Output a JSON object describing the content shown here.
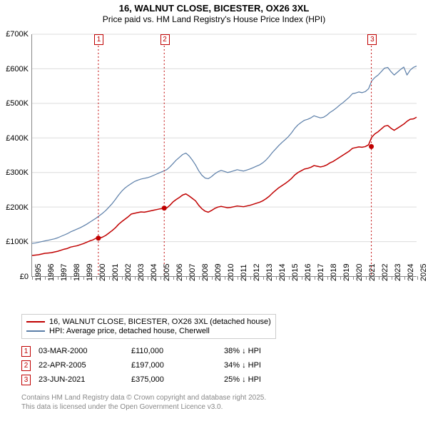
{
  "title_line1": "16, WALNUT CLOSE, BICESTER, OX26 3XL",
  "title_line2": "Price paid vs. HM Land Registry's House Price Index (HPI)",
  "chart": {
    "type": "line",
    "background_color": "#ffffff",
    "grid_color": "#dcdcdc",
    "axis_color": "#888888",
    "x": {
      "min": 1995,
      "max": 2025,
      "tick_step": 1,
      "labels": [
        "1995",
        "1996",
        "1997",
        "1998",
        "1999",
        "2000",
        "2001",
        "2002",
        "2003",
        "2004",
        "2005",
        "2006",
        "2007",
        "2008",
        "2009",
        "2010",
        "2011",
        "2012",
        "2013",
        "2014",
        "2015",
        "2016",
        "2017",
        "2018",
        "2019",
        "2020",
        "2021",
        "2022",
        "2023",
        "2024",
        "2025"
      ]
    },
    "y": {
      "min": 0,
      "max": 700000,
      "tick_step": 100000,
      "labels": [
        "£0",
        "£100K",
        "£200K",
        "£300K",
        "£400K",
        "£500K",
        "£600K",
        "£700K"
      ]
    },
    "series_red": {
      "color": "#c00000",
      "line_width": 1.5,
      "points_y": [
        60000,
        61000,
        62000,
        64000,
        66000,
        67000,
        68000,
        70000,
        72000,
        75000,
        78000,
        80000,
        84000,
        86000,
        88000,
        91000,
        94000,
        98000,
        102000,
        105000,
        110000,
        110000,
        113000,
        118000,
        125000,
        132000,
        140000,
        150000,
        158000,
        165000,
        172000,
        180000,
        182000,
        184000,
        186000,
        185000,
        187000,
        189000,
        191000,
        193000,
        195000,
        196000,
        197000,
        205000,
        215000,
        222000,
        228000,
        235000,
        238000,
        232000,
        225000,
        218000,
        205000,
        195000,
        188000,
        185000,
        190000,
        196000,
        200000,
        202000,
        200000,
        198000,
        199000,
        201000,
        203000,
        202000,
        201000,
        203000,
        205000,
        208000,
        211000,
        214000,
        218000,
        224000,
        231000,
        240000,
        248000,
        256000,
        262000,
        268000,
        275000,
        283000,
        293000,
        300000,
        305000,
        310000,
        312000,
        315000,
        320000,
        318000,
        316000,
        318000,
        322000,
        328000,
        332000,
        338000,
        344000,
        350000,
        356000,
        362000,
        370000,
        372000,
        374000,
        373000,
        375000,
        380000,
        402000,
        412000,
        418000,
        426000,
        434000,
        436000,
        428000,
        422000,
        428000,
        434000,
        440000,
        448000,
        454000,
        455000,
        460000
      ]
    },
    "series_blue": {
      "color": "#5b7ea8",
      "line_width": 1.2,
      "points_y": [
        95000,
        96000,
        98000,
        100000,
        102000,
        104000,
        106000,
        108000,
        111000,
        115000,
        119000,
        123000,
        128000,
        132000,
        136000,
        140000,
        145000,
        150000,
        156000,
        162000,
        168000,
        175000,
        182000,
        190000,
        200000,
        210000,
        222000,
        235000,
        246000,
        255000,
        262000,
        268000,
        274000,
        278000,
        281000,
        283000,
        285000,
        288000,
        292000,
        296000,
        300000,
        304000,
        308000,
        316000,
        326000,
        336000,
        344000,
        352000,
        356000,
        348000,
        336000,
        322000,
        305000,
        292000,
        284000,
        282000,
        288000,
        296000,
        302000,
        306000,
        303000,
        300000,
        302000,
        305000,
        308000,
        306000,
        304000,
        307000,
        310000,
        314000,
        318000,
        322000,
        328000,
        336000,
        346000,
        358000,
        368000,
        378000,
        387000,
        395000,
        404000,
        415000,
        428000,
        438000,
        445000,
        451000,
        454000,
        458000,
        464000,
        461000,
        458000,
        460000,
        466000,
        474000,
        480000,
        487000,
        495000,
        502000,
        510000,
        518000,
        528000,
        530000,
        533000,
        531000,
        534000,
        542000,
        565000,
        575000,
        582000,
        592000,
        602000,
        604000,
        592000,
        582000,
        590000,
        598000,
        605000,
        582000,
        596000,
        604000,
        608000
      ]
    },
    "markers": [
      {
        "n": "1",
        "year": 2000.17,
        "price": 110000,
        "color": "#c00000"
      },
      {
        "n": "2",
        "year": 2005.31,
        "price": 197000,
        "color": "#c00000"
      },
      {
        "n": "3",
        "year": 2021.47,
        "price": 375000,
        "color": "#c00000"
      }
    ],
    "sale_dots": [
      {
        "year": 2000.17,
        "price": 110000
      },
      {
        "year": 2005.31,
        "price": 197000
      },
      {
        "year": 2021.47,
        "price": 375000
      }
    ]
  },
  "legend": {
    "red": {
      "color": "#c00000",
      "label": "16, WALNUT CLOSE, BICESTER, OX26 3XL (detached house)"
    },
    "blue": {
      "color": "#5b7ea8",
      "label": "HPI: Average price, detached house, Cherwell"
    }
  },
  "sales": [
    {
      "n": "1",
      "date": "03-MAR-2000",
      "price": "£110,000",
      "diff": "38% ↓ HPI",
      "color": "#c00000"
    },
    {
      "n": "2",
      "date": "22-APR-2005",
      "price": "£197,000",
      "diff": "34% ↓ HPI",
      "color": "#c00000"
    },
    {
      "n": "3",
      "date": "23-JUN-2021",
      "price": "£375,000",
      "diff": "25% ↓ HPI",
      "color": "#c00000"
    }
  ],
  "footnote_1": "Contains HM Land Registry data © Crown copyright and database right 2025.",
  "footnote_2": "This data is licensed under the Open Government Licence v3.0."
}
